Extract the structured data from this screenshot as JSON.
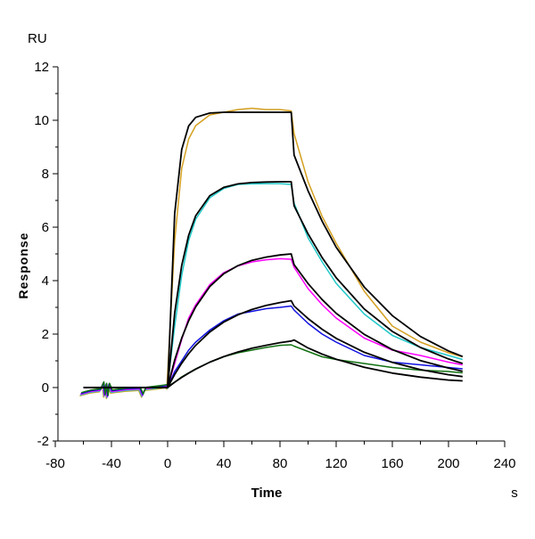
{
  "chart_data": {
    "type": "line",
    "title": "",
    "xlabel": "Time",
    "xunit": "s",
    "ylabel": "Response",
    "yunit": "RU",
    "xlim": [
      -80,
      240
    ],
    "ylim": [
      -2,
      12
    ],
    "xticks": [
      -80,
      -40,
      0,
      40,
      80,
      120,
      160,
      200,
      240
    ],
    "yticks": [
      -2,
      0,
      2,
      4,
      6,
      8,
      10,
      12
    ],
    "grid": false,
    "legend": "none",
    "baseline": [
      [
        -62,
        -0.25
      ],
      [
        -55,
        -0.15
      ],
      [
        -48,
        -0.1
      ],
      [
        -46,
        0.15
      ],
      [
        -45,
        -0.3
      ],
      [
        -44,
        0.1
      ],
      [
        -43,
        -0.35
      ],
      [
        -42,
        0.1
      ],
      [
        -40,
        -0.15
      ],
      [
        -30,
        -0.08
      ],
      [
        -20,
        -0.05
      ],
      [
        -18,
        -0.3
      ],
      [
        -16,
        -0.05
      ],
      [
        -5,
        0.02
      ],
      [
        -1,
        0.05
      ],
      [
        0,
        0
      ]
    ],
    "observed": [
      {
        "color": "#d4a020",
        "points": [
          [
            5,
            5.5
          ],
          [
            10,
            8.2
          ],
          [
            15,
            9.3
          ],
          [
            20,
            9.8
          ],
          [
            30,
            10.2
          ],
          [
            40,
            10.3
          ],
          [
            50,
            10.4
          ],
          [
            60,
            10.45
          ],
          [
            70,
            10.4
          ],
          [
            80,
            10.4
          ],
          [
            88,
            10.35
          ],
          [
            90,
            9.5
          ],
          [
            100,
            7.7
          ],
          [
            110,
            6.4
          ],
          [
            120,
            5.4
          ],
          [
            140,
            3.6
          ],
          [
            160,
            2.3
          ],
          [
            180,
            1.7
          ],
          [
            200,
            1.3
          ],
          [
            210,
            1.15
          ]
        ]
      },
      {
        "color": "#20c8c8",
        "points": [
          [
            5,
            2.3
          ],
          [
            10,
            4.2
          ],
          [
            15,
            5.5
          ],
          [
            20,
            6.3
          ],
          [
            30,
            7.1
          ],
          [
            40,
            7.45
          ],
          [
            50,
            7.6
          ],
          [
            60,
            7.62
          ],
          [
            70,
            7.63
          ],
          [
            80,
            7.63
          ],
          [
            88,
            7.6
          ],
          [
            90,
            6.9
          ],
          [
            100,
            5.6
          ],
          [
            110,
            4.7
          ],
          [
            120,
            3.9
          ],
          [
            140,
            2.75
          ],
          [
            160,
            1.95
          ],
          [
            180,
            1.5
          ],
          [
            200,
            1.2
          ],
          [
            210,
            1.05
          ]
        ]
      },
      {
        "color": "#ff00ff",
        "points": [
          [
            5,
            0.9
          ],
          [
            10,
            1.8
          ],
          [
            15,
            2.6
          ],
          [
            20,
            3.1
          ],
          [
            30,
            3.85
          ],
          [
            40,
            4.3
          ],
          [
            50,
            4.55
          ],
          [
            60,
            4.7
          ],
          [
            70,
            4.78
          ],
          [
            80,
            4.82
          ],
          [
            88,
            4.8
          ],
          [
            90,
            4.5
          ],
          [
            100,
            3.7
          ],
          [
            110,
            3.1
          ],
          [
            120,
            2.6
          ],
          [
            140,
            1.85
          ],
          [
            160,
            1.4
          ],
          [
            180,
            1.2
          ],
          [
            200,
            0.95
          ],
          [
            210,
            0.85
          ]
        ]
      },
      {
        "color": "#1010e0",
        "points": [
          [
            5,
            0.6
          ],
          [
            10,
            1.0
          ],
          [
            15,
            1.4
          ],
          [
            20,
            1.7
          ],
          [
            30,
            2.15
          ],
          [
            40,
            2.5
          ],
          [
            50,
            2.75
          ],
          [
            60,
            2.85
          ],
          [
            70,
            2.95
          ],
          [
            80,
            3.0
          ],
          [
            88,
            3.05
          ],
          [
            90,
            2.9
          ],
          [
            100,
            2.4
          ],
          [
            110,
            2.0
          ],
          [
            120,
            1.7
          ],
          [
            140,
            1.2
          ],
          [
            160,
            0.95
          ],
          [
            180,
            0.85
          ],
          [
            200,
            0.75
          ],
          [
            210,
            0.7
          ]
        ]
      },
      {
        "color": "#107010",
        "points": [
          [
            5,
            0.2
          ],
          [
            10,
            0.4
          ],
          [
            15,
            0.55
          ],
          [
            20,
            0.7
          ],
          [
            30,
            0.95
          ],
          [
            40,
            1.15
          ],
          [
            50,
            1.3
          ],
          [
            60,
            1.4
          ],
          [
            70,
            1.5
          ],
          [
            80,
            1.58
          ],
          [
            88,
            1.6
          ],
          [
            90,
            1.55
          ],
          [
            100,
            1.35
          ],
          [
            110,
            1.15
          ],
          [
            120,
            1.05
          ],
          [
            140,
            0.9
          ],
          [
            160,
            0.75
          ],
          [
            180,
            0.65
          ],
          [
            200,
            0.6
          ],
          [
            210,
            0.55
          ]
        ]
      }
    ],
    "fit": [
      {
        "color": "#000000",
        "points": [
          [
            -60,
            0
          ],
          [
            0,
            0
          ],
          [
            5,
            6.51
          ],
          [
            10,
            8.91
          ],
          [
            15,
            9.79
          ],
          [
            20,
            10.11
          ],
          [
            30,
            10.27
          ],
          [
            40,
            10.3
          ],
          [
            88,
            10.3
          ],
          [
            90,
            8.7
          ],
          [
            100,
            7.36
          ],
          [
            110,
            6.22
          ],
          [
            120,
            5.25
          ],
          [
            140,
            3.76
          ],
          [
            160,
            2.69
          ],
          [
            180,
            1.91
          ],
          [
            200,
            1.37
          ],
          [
            210,
            1.16
          ]
        ]
      },
      {
        "color": "#000000",
        "points": [
          [
            -60,
            0
          ],
          [
            0,
            0
          ],
          [
            5,
            2.79
          ],
          [
            10,
            4.57
          ],
          [
            15,
            5.7
          ],
          [
            20,
            6.43
          ],
          [
            30,
            7.18
          ],
          [
            40,
            7.49
          ],
          [
            50,
            7.62
          ],
          [
            60,
            7.67
          ],
          [
            70,
            7.69
          ],
          [
            80,
            7.7
          ],
          [
            88,
            7.7
          ],
          [
            90,
            6.8
          ],
          [
            100,
            5.75
          ],
          [
            110,
            4.86
          ],
          [
            120,
            4.11
          ],
          [
            140,
            2.94
          ],
          [
            160,
            2.1
          ],
          [
            180,
            1.5
          ],
          [
            200,
            1.07
          ],
          [
            210,
            0.9
          ]
        ]
      },
      {
        "color": "#000000",
        "points": [
          [
            -60,
            0
          ],
          [
            0,
            0
          ],
          [
            5,
            1.03
          ],
          [
            10,
            1.85
          ],
          [
            15,
            2.5
          ],
          [
            20,
            3.02
          ],
          [
            30,
            3.78
          ],
          [
            40,
            4.26
          ],
          [
            50,
            4.56
          ],
          [
            60,
            4.76
          ],
          [
            70,
            4.88
          ],
          [
            80,
            4.96
          ],
          [
            88,
            5.0
          ],
          [
            90,
            4.6
          ],
          [
            100,
            3.89
          ],
          [
            110,
            3.29
          ],
          [
            120,
            2.78
          ],
          [
            140,
            1.99
          ],
          [
            160,
            1.42
          ],
          [
            180,
            1.01
          ],
          [
            200,
            0.73
          ],
          [
            210,
            0.61
          ]
        ]
      },
      {
        "color": "#000000",
        "points": [
          [
            -60,
            0
          ],
          [
            0,
            0
          ],
          [
            5,
            0.49
          ],
          [
            10,
            0.91
          ],
          [
            15,
            1.27
          ],
          [
            20,
            1.58
          ],
          [
            30,
            2.08
          ],
          [
            40,
            2.45
          ],
          [
            50,
            2.72
          ],
          [
            60,
            2.92
          ],
          [
            70,
            3.07
          ],
          [
            80,
            3.18
          ],
          [
            88,
            3.25
          ],
          [
            90,
            3.05
          ],
          [
            100,
            2.58
          ],
          [
            110,
            2.18
          ],
          [
            120,
            1.84
          ],
          [
            140,
            1.32
          ],
          [
            160,
            0.94
          ],
          [
            180,
            0.67
          ],
          [
            200,
            0.48
          ],
          [
            210,
            0.41
          ]
        ]
      },
      {
        "color": "#000000",
        "points": [
          [
            -60,
            0
          ],
          [
            0,
            0
          ],
          [
            5,
            0.2
          ],
          [
            10,
            0.38
          ],
          [
            15,
            0.54
          ],
          [
            20,
            0.69
          ],
          [
            30,
            0.95
          ],
          [
            40,
            1.16
          ],
          [
            50,
            1.33
          ],
          [
            60,
            1.47
          ],
          [
            70,
            1.58
          ],
          [
            80,
            1.68
          ],
          [
            88,
            1.74
          ],
          [
            90,
            1.78
          ],
          [
            100,
            1.48
          ],
          [
            110,
            1.25
          ],
          [
            120,
            1.06
          ],
          [
            140,
            0.76
          ],
          [
            160,
            0.54
          ],
          [
            180,
            0.39
          ],
          [
            200,
            0.28
          ],
          [
            210,
            0.25
          ]
        ]
      }
    ]
  }
}
